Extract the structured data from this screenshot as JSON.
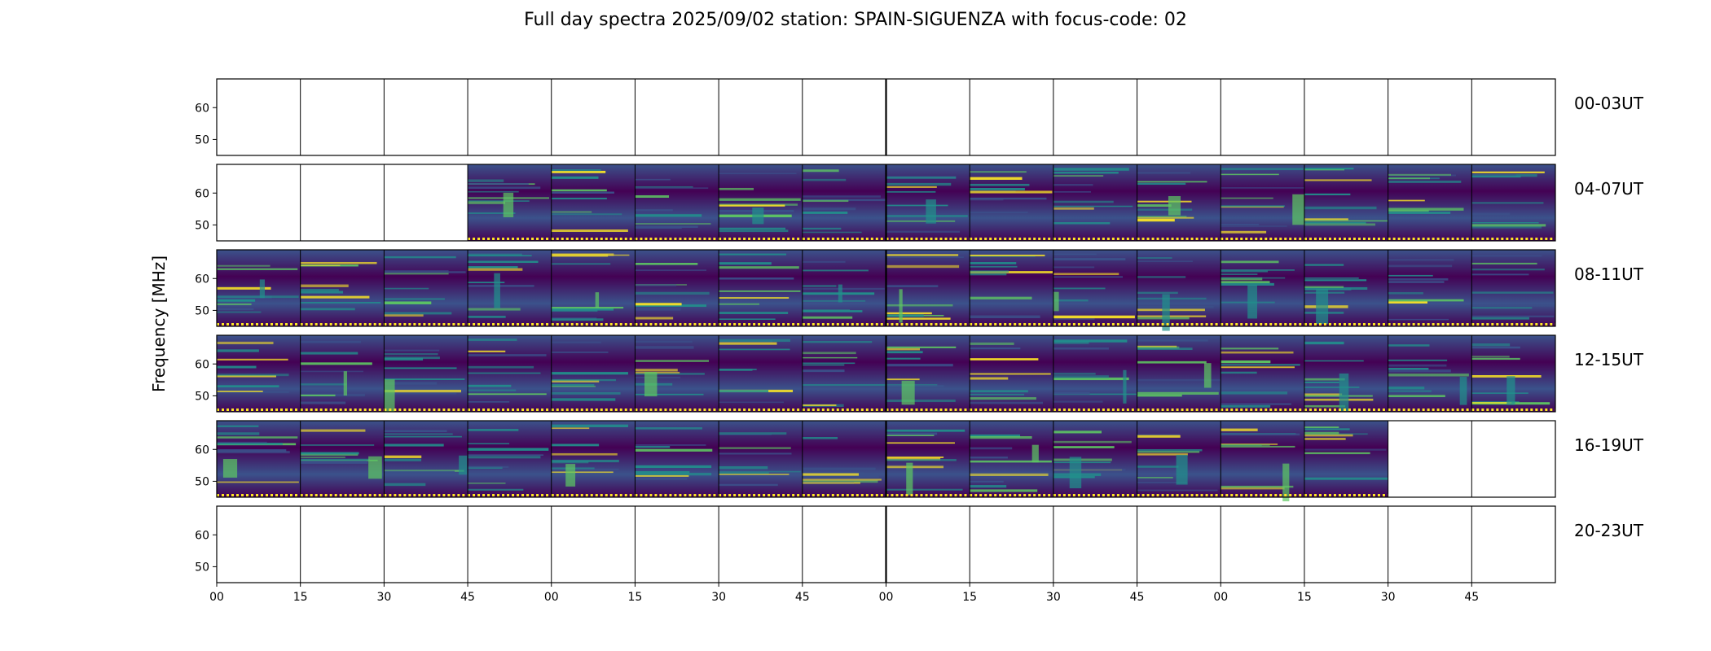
{
  "chart_data": {
    "type": "heatmap",
    "title": "Full day spectra 2025/09/02 station: SPAIN-SIGUENZA with focus-code: 02",
    "ylabel": "Frequency [MHz]",
    "xlabel": "",
    "colormap": "viridis",
    "colors": [
      "#440154",
      "#3b528b",
      "#21918c",
      "#5ec962",
      "#fde725"
    ],
    "ylim": [
      45,
      69
    ],
    "y_ticks": [
      "60",
      "50"
    ],
    "y_tick_values": [
      60,
      50
    ],
    "x_tick_labels": [
      "00",
      "15",
      "30",
      "45",
      "00",
      "15",
      "30",
      "45",
      "00",
      "15",
      "30",
      "45",
      "00",
      "15",
      "30",
      "45"
    ],
    "segments_per_row": 16,
    "segment_minutes": 15,
    "rows": [
      {
        "label": "00-03UT",
        "data_segments": [
          0,
          0,
          0,
          0,
          0,
          0,
          0,
          0,
          0,
          0,
          0,
          0,
          0,
          0,
          0,
          0
        ]
      },
      {
        "label": "04-07UT",
        "data_segments": [
          0,
          0,
          0,
          1,
          1,
          1,
          1,
          1,
          1,
          1,
          1,
          1,
          1,
          1,
          1,
          1
        ]
      },
      {
        "label": "08-11UT",
        "data_segments": [
          1,
          1,
          1,
          1,
          1,
          1,
          1,
          1,
          1,
          1,
          1,
          1,
          1,
          1,
          1,
          1
        ]
      },
      {
        "label": "12-15UT",
        "data_segments": [
          1,
          1,
          1,
          1,
          1,
          1,
          1,
          1,
          1,
          1,
          1,
          1,
          1,
          1,
          1,
          1
        ]
      },
      {
        "label": "16-19UT",
        "data_segments": [
          1,
          1,
          1,
          1,
          1,
          1,
          1,
          1,
          1,
          1,
          1,
          1,
          1,
          1,
          0,
          0
        ]
      },
      {
        "label": "20-23UT",
        "data_segments": [
          0,
          0,
          0,
          0,
          0,
          0,
          0,
          0,
          0,
          0,
          0,
          0,
          0,
          0,
          0,
          0
        ]
      }
    ]
  }
}
